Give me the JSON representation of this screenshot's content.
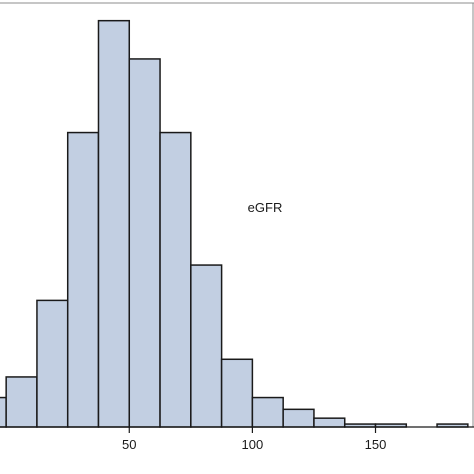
{
  "chart_data": {
    "type": "bar",
    "subtype": "histogram",
    "xlabel": "eGFR",
    "ylabel": "",
    "title": "",
    "bin_width": 12.5,
    "bins": [
      {
        "start": -12.5,
        "end": 0,
        "count": 10
      },
      {
        "start": 0,
        "end": 12.5,
        "count": 17
      },
      {
        "start": 12.5,
        "end": 25,
        "count": 43
      },
      {
        "start": 25,
        "end": 37.5,
        "count": 100
      },
      {
        "start": 37.5,
        "end": 50,
        "count": 138
      },
      {
        "start": 50,
        "end": 62.5,
        "count": 125
      },
      {
        "start": 62.5,
        "end": 75,
        "count": 100
      },
      {
        "start": 75,
        "end": 87.5,
        "count": 55
      },
      {
        "start": 87.5,
        "end": 100,
        "count": 23
      },
      {
        "start": 100,
        "end": 112.5,
        "count": 10
      },
      {
        "start": 112.5,
        "end": 125,
        "count": 6
      },
      {
        "start": 125,
        "end": 137.5,
        "count": 3
      },
      {
        "start": 137.5,
        "end": 150,
        "count": 1
      },
      {
        "start": 150,
        "end": 162.5,
        "count": 1
      },
      {
        "start": 162.5,
        "end": 175,
        "count": 0
      },
      {
        "start": 175,
        "end": 187.5,
        "count": 1
      }
    ],
    "xlim": [
      -2.5,
      190
    ],
    "ylim": [
      0,
      144
    ],
    "x_ticks": [
      50,
      100,
      150
    ],
    "grid": false,
    "colors": {
      "bar_fill": "#c2cfe2",
      "bar_edge": "#1a1a1a"
    }
  }
}
